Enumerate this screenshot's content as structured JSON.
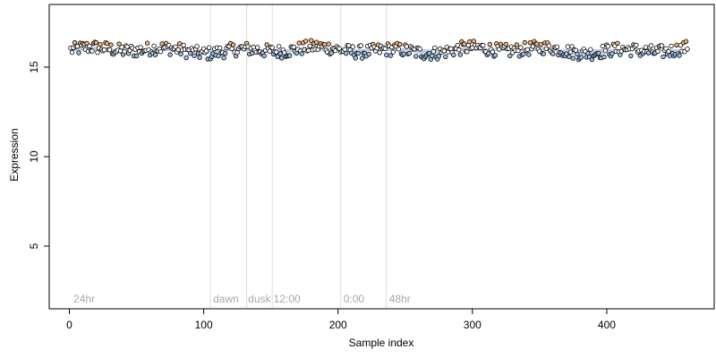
{
  "chart_data": {
    "type": "scatter",
    "title": "",
    "xlabel": "Sample index",
    "ylabel": "Expression",
    "xlim": [
      -15,
      480
    ],
    "ylim": [
      1.5,
      18.5
    ],
    "x_ticks": [
      0,
      100,
      200,
      300,
      400
    ],
    "y_ticks": [
      5,
      10,
      15
    ],
    "grid": false,
    "legend": "none",
    "vlines": [
      105,
      132,
      151,
      202,
      236
    ],
    "region_labels": [
      {
        "x": 3,
        "label": "24hr"
      },
      {
        "x": 107,
        "label": "dawn"
      },
      {
        "x": 133,
        "label": "dusk"
      },
      {
        "x": 152,
        "label": "12:00"
      },
      {
        "x": 204,
        "label": "0:00"
      },
      {
        "x": 238,
        "label": "48hr"
      }
    ],
    "series": [
      {
        "baseline": 15.95,
        "n_points": 460,
        "values_min": 15.1,
        "values_max": 16.7
      }
    ],
    "colors": {
      "point_fill_low": "#9fc1ea",
      "point_fill_high": "#f3b37a",
      "point_fill_mid": "#ffffff",
      "trend_band": "#8aa6cc",
      "vline": "#dcdcdc",
      "axis": "#000000"
    }
  }
}
